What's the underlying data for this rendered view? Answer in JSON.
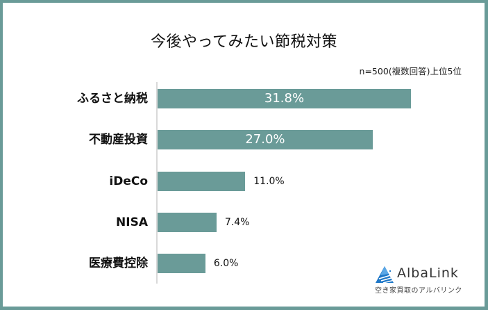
{
  "title": "今後やってみたい節税対策",
  "note": "n=500(複数回答)上位5位",
  "colors": {
    "bar": "#6a9b98",
    "frame": "#6a9b98",
    "axis": "#d9d9d9"
  },
  "bars": [
    {
      "label": "ふるさと納税",
      "value": 31.8,
      "display": "31.8%"
    },
    {
      "label": "不動産投資",
      "value": 27.0,
      "display": "27.0%"
    },
    {
      "label": "iDeCo",
      "value": 11.0,
      "display": "11.0%"
    },
    {
      "label": "NISA",
      "value": 7.4,
      "display": "7.4%"
    },
    {
      "label": "医療費控除",
      "value": 6.0,
      "display": "6.0%"
    }
  ],
  "logo": {
    "name": "AlbaLink",
    "tagline": "空き家買取のアルバリンク"
  },
  "chart_data": {
    "type": "bar",
    "orientation": "horizontal",
    "title": "今後やってみたい節税対策",
    "subtitle": "n=500(複数回答)上位5位",
    "categories": [
      "ふるさと納税",
      "不動産投資",
      "iDeCo",
      "NISA",
      "医療費控除"
    ],
    "values": [
      31.8,
      27.0,
      11.0,
      7.4,
      6.0
    ],
    "unit": "%",
    "xlabel": "",
    "ylabel": "",
    "grid": false,
    "legend": null
  }
}
